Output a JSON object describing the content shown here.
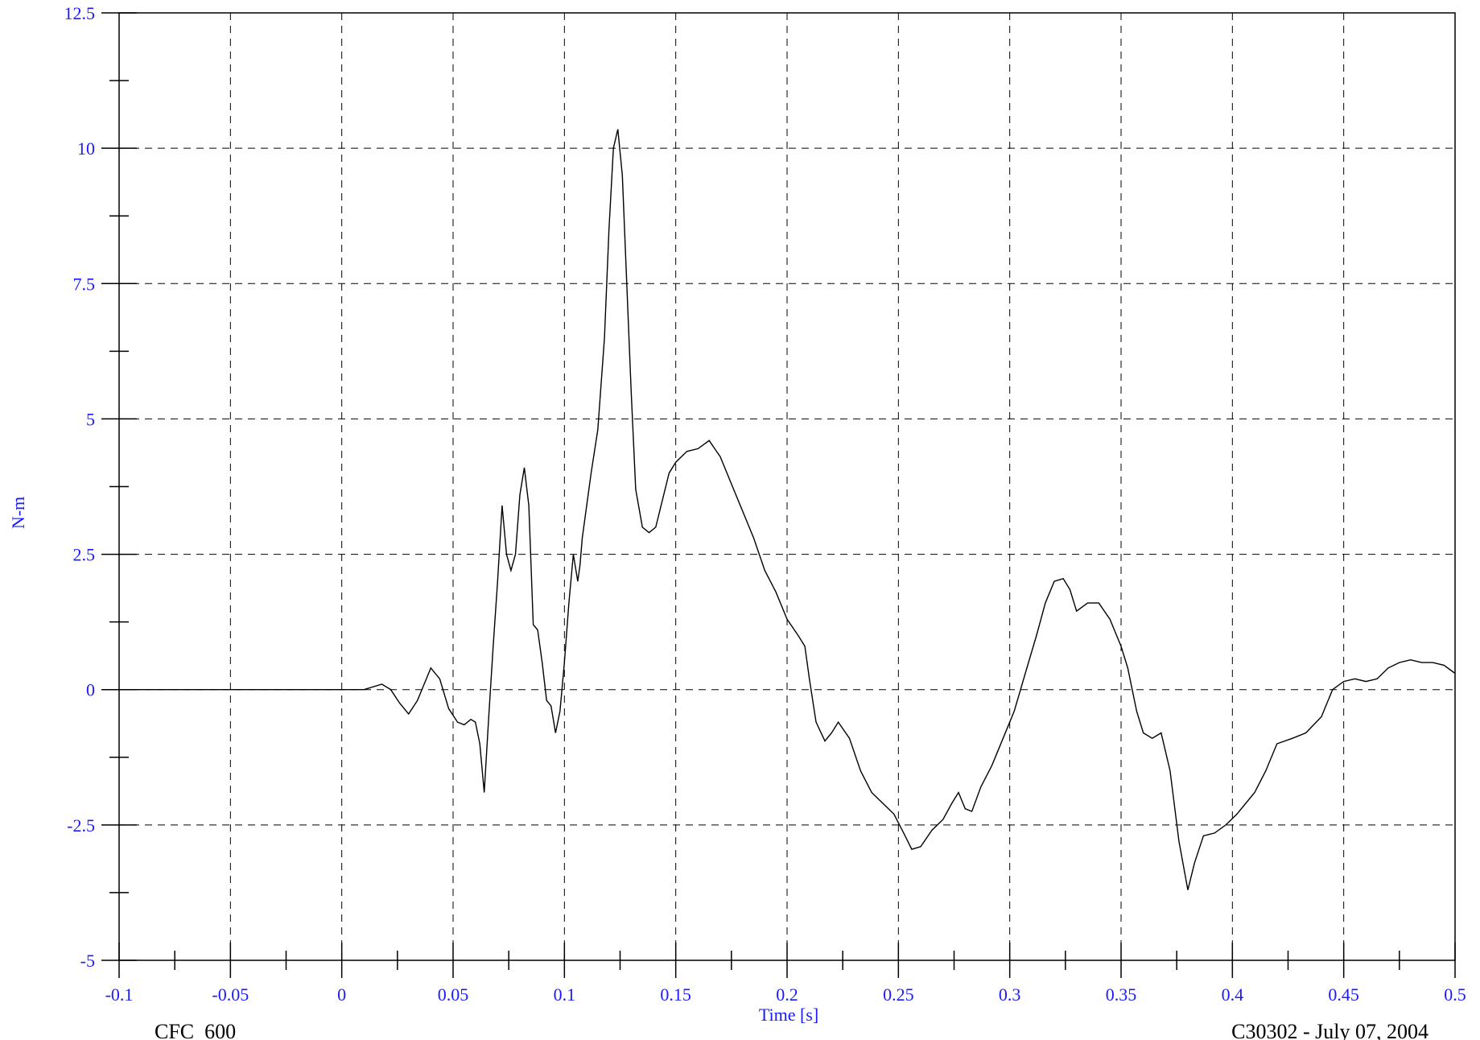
{
  "chart_data": {
    "type": "line",
    "xlabel": "Time [s]",
    "ylabel": "N-m",
    "xlim": [
      -0.1,
      0.5
    ],
    "ylim": [
      -5,
      12.5
    ],
    "x_ticks": [
      -0.1,
      -0.05,
      0,
      0.05,
      0.1,
      0.15,
      0.2,
      0.25,
      0.3,
      0.35,
      0.4,
      0.45,
      0.5
    ],
    "x_tick_labels": [
      "-0.1",
      "-0.05",
      "0",
      "0.05",
      "0.1",
      "0.15",
      "0.2",
      "0.25",
      "0.3",
      "0.35",
      "0.4",
      "0.45",
      "0.5"
    ],
    "y_ticks": [
      -5,
      -2.5,
      0,
      2.5,
      5,
      7.5,
      10,
      12.5
    ],
    "y_tick_labels": [
      "-5",
      "-2.5",
      "0",
      "2.5",
      "5",
      "7.5",
      "10",
      "12.5"
    ],
    "grid": true,
    "legend": "none",
    "footer_left": "CFC_600",
    "footer_right": "C30302 - July 07, 2004",
    "colors": {
      "tick_labels": "#1a1aff",
      "series": "#000000",
      "grid": "#000000"
    },
    "series": [
      {
        "x": [
          -0.1,
          -0.08,
          -0.06,
          -0.04,
          -0.02,
          0,
          0.01,
          0.018,
          0.022,
          0.026,
          0.03,
          0.034,
          0.037,
          0.04,
          0.044,
          0.048,
          0.052,
          0.055,
          0.058,
          0.06,
          0.062,
          0.064,
          0.066,
          0.068,
          0.07,
          0.072,
          0.074,
          0.076,
          0.078,
          0.08,
          0.082,
          0.084,
          0.086,
          0.088,
          0.09,
          0.092,
          0.094,
          0.096,
          0.098,
          0.1,
          0.102,
          0.104,
          0.106,
          0.107,
          0.108,
          0.11,
          0.112,
          0.115,
          0.118,
          0.12,
          0.122,
          0.124,
          0.126,
          0.128,
          0.13,
          0.132,
          0.135,
          0.138,
          0.141,
          0.144,
          0.147,
          0.15,
          0.155,
          0.16,
          0.165,
          0.17,
          0.175,
          0.18,
          0.185,
          0.19,
          0.195,
          0.2,
          0.205,
          0.208,
          0.21,
          0.213,
          0.217,
          0.22,
          0.223,
          0.228,
          0.233,
          0.238,
          0.243,
          0.248,
          0.253,
          0.256,
          0.26,
          0.265,
          0.27,
          0.274,
          0.277,
          0.28,
          0.283,
          0.287,
          0.292,
          0.297,
          0.302,
          0.307,
          0.312,
          0.316,
          0.32,
          0.324,
          0.327,
          0.33,
          0.335,
          0.34,
          0.345,
          0.35,
          0.353,
          0.357,
          0.36,
          0.364,
          0.368,
          0.372,
          0.376,
          0.38,
          0.383,
          0.387,
          0.392,
          0.397,
          0.402,
          0.406,
          0.41,
          0.415,
          0.42,
          0.427,
          0.433,
          0.44,
          0.445,
          0.45,
          0.455,
          0.46,
          0.465,
          0.47,
          0.475,
          0.48,
          0.485,
          0.49,
          0.495,
          0.5
        ],
        "y": [
          0,
          0,
          0,
          0,
          0,
          0,
          0,
          0.1,
          0,
          -0.25,
          -0.45,
          -0.2,
          0.1,
          0.4,
          0.2,
          -0.35,
          -0.6,
          -0.65,
          -0.55,
          -0.6,
          -1.0,
          -1.9,
          -0.5,
          0.8,
          2.0,
          3.4,
          2.5,
          2.2,
          2.5,
          3.6,
          4.1,
          3.4,
          1.2,
          1.1,
          0.5,
          -0.2,
          -0.3,
          -0.8,
          -0.4,
          0.5,
          1.6,
          2.5,
          2.0,
          2.3,
          2.8,
          3.4,
          4.0,
          4.8,
          6.5,
          8.5,
          10.0,
          10.35,
          9.5,
          7.5,
          5.5,
          3.7,
          3.0,
          2.9,
          3.0,
          3.5,
          4.0,
          4.2,
          4.4,
          4.45,
          4.6,
          4.3,
          3.8,
          3.3,
          2.8,
          2.2,
          1.8,
          1.3,
          1.0,
          0.8,
          0.2,
          -0.6,
          -0.95,
          -0.8,
          -0.6,
          -0.9,
          -1.5,
          -1.9,
          -2.1,
          -2.3,
          -2.7,
          -2.95,
          -2.9,
          -2.6,
          -2.4,
          -2.1,
          -1.9,
          -2.2,
          -2.25,
          -1.8,
          -1.4,
          -0.9,
          -0.4,
          0.3,
          1.0,
          1.6,
          2.0,
          2.05,
          1.85,
          1.45,
          1.6,
          1.6,
          1.3,
          0.8,
          0.4,
          -0.4,
          -0.8,
          -0.9,
          -0.8,
          -1.5,
          -2.8,
          -3.7,
          -3.2,
          -2.7,
          -2.65,
          -2.5,
          -2.3,
          -2.1,
          -1.9,
          -1.5,
          -1.0,
          -0.9,
          -0.8,
          -0.5,
          0.0,
          0.15,
          0.2,
          0.15,
          0.2,
          0.4,
          0.5,
          0.55,
          0.5,
          0.5,
          0.45,
          0.3
        ]
      }
    ]
  }
}
